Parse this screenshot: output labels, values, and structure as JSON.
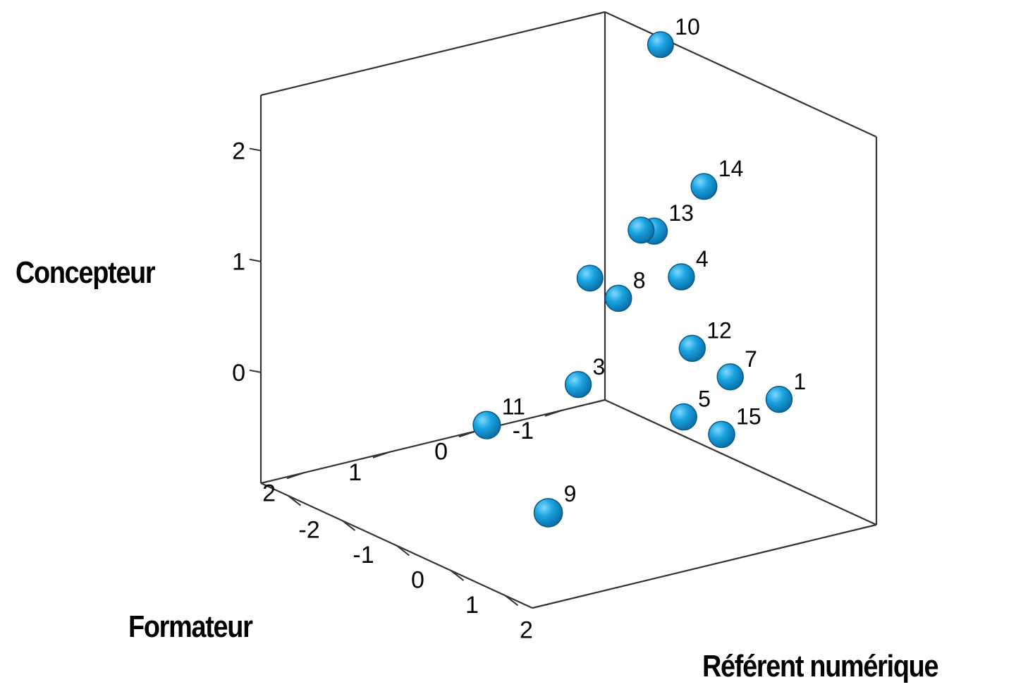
{
  "chart_data": {
    "type": "scatter",
    "subtype": "3d",
    "title": "",
    "xlabel": "Référent numérique",
    "ylabel": "Formateur",
    "zlabel": "Concepteur",
    "xlim": [
      -2.5,
      2.5
    ],
    "ylim": [
      -1.5,
      2.5
    ],
    "zlim": [
      -1,
      2.5
    ],
    "xticks": [
      "-2",
      "-1",
      "0",
      "1",
      "2"
    ],
    "yticks": [
      "-1",
      "0",
      "1",
      "2"
    ],
    "zticks": [
      "0",
      "1",
      "2"
    ],
    "marker_color": "#1aa3e0",
    "marker_edge": "#0b5a84",
    "points": [
      {
        "label": "10",
        "x": -1.0,
        "y": -1.2,
        "z": 2.6
      },
      {
        "label": "14",
        "x": -0.2,
        "y": -1.2,
        "z": 1.5
      },
      {
        "label": "13",
        "x": -0.8,
        "y": -1.0,
        "z": 1.0
      },
      {
        "label": "",
        "x": -1.2,
        "y": -1.1,
        "z": 0.9
      },
      {
        "label": "4",
        "x": -0.3,
        "y": -1.0,
        "z": 0.7
      },
      {
        "label": "8",
        "x": -1.3,
        "y": -0.9,
        "z": 0.3
      },
      {
        "label": "",
        "x": -2.3,
        "y": -1.2,
        "z": 0.2
      },
      {
        "label": "12",
        "x": -0.1,
        "y": -1.0,
        "z": 0.1
      },
      {
        "label": "7",
        "x": 0.6,
        "y": -1.0,
        "z": 0.0
      },
      {
        "label": "1",
        "x": 1.5,
        "y": -1.0,
        "z": 0.0
      },
      {
        "label": "15",
        "x": 0.6,
        "y": -0.9,
        "z": -0.5
      },
      {
        "label": "5",
        "x": -0.1,
        "y": -0.9,
        "z": -0.5
      },
      {
        "label": "3",
        "x": -2.2,
        "y": -1.0,
        "z": -0.7
      },
      {
        "label": "11",
        "x": -2.3,
        "y": 0.0,
        "z": -0.9
      },
      {
        "label": "9",
        "x": 0.1,
        "y": 0.8,
        "z": -1.0
      }
    ]
  }
}
